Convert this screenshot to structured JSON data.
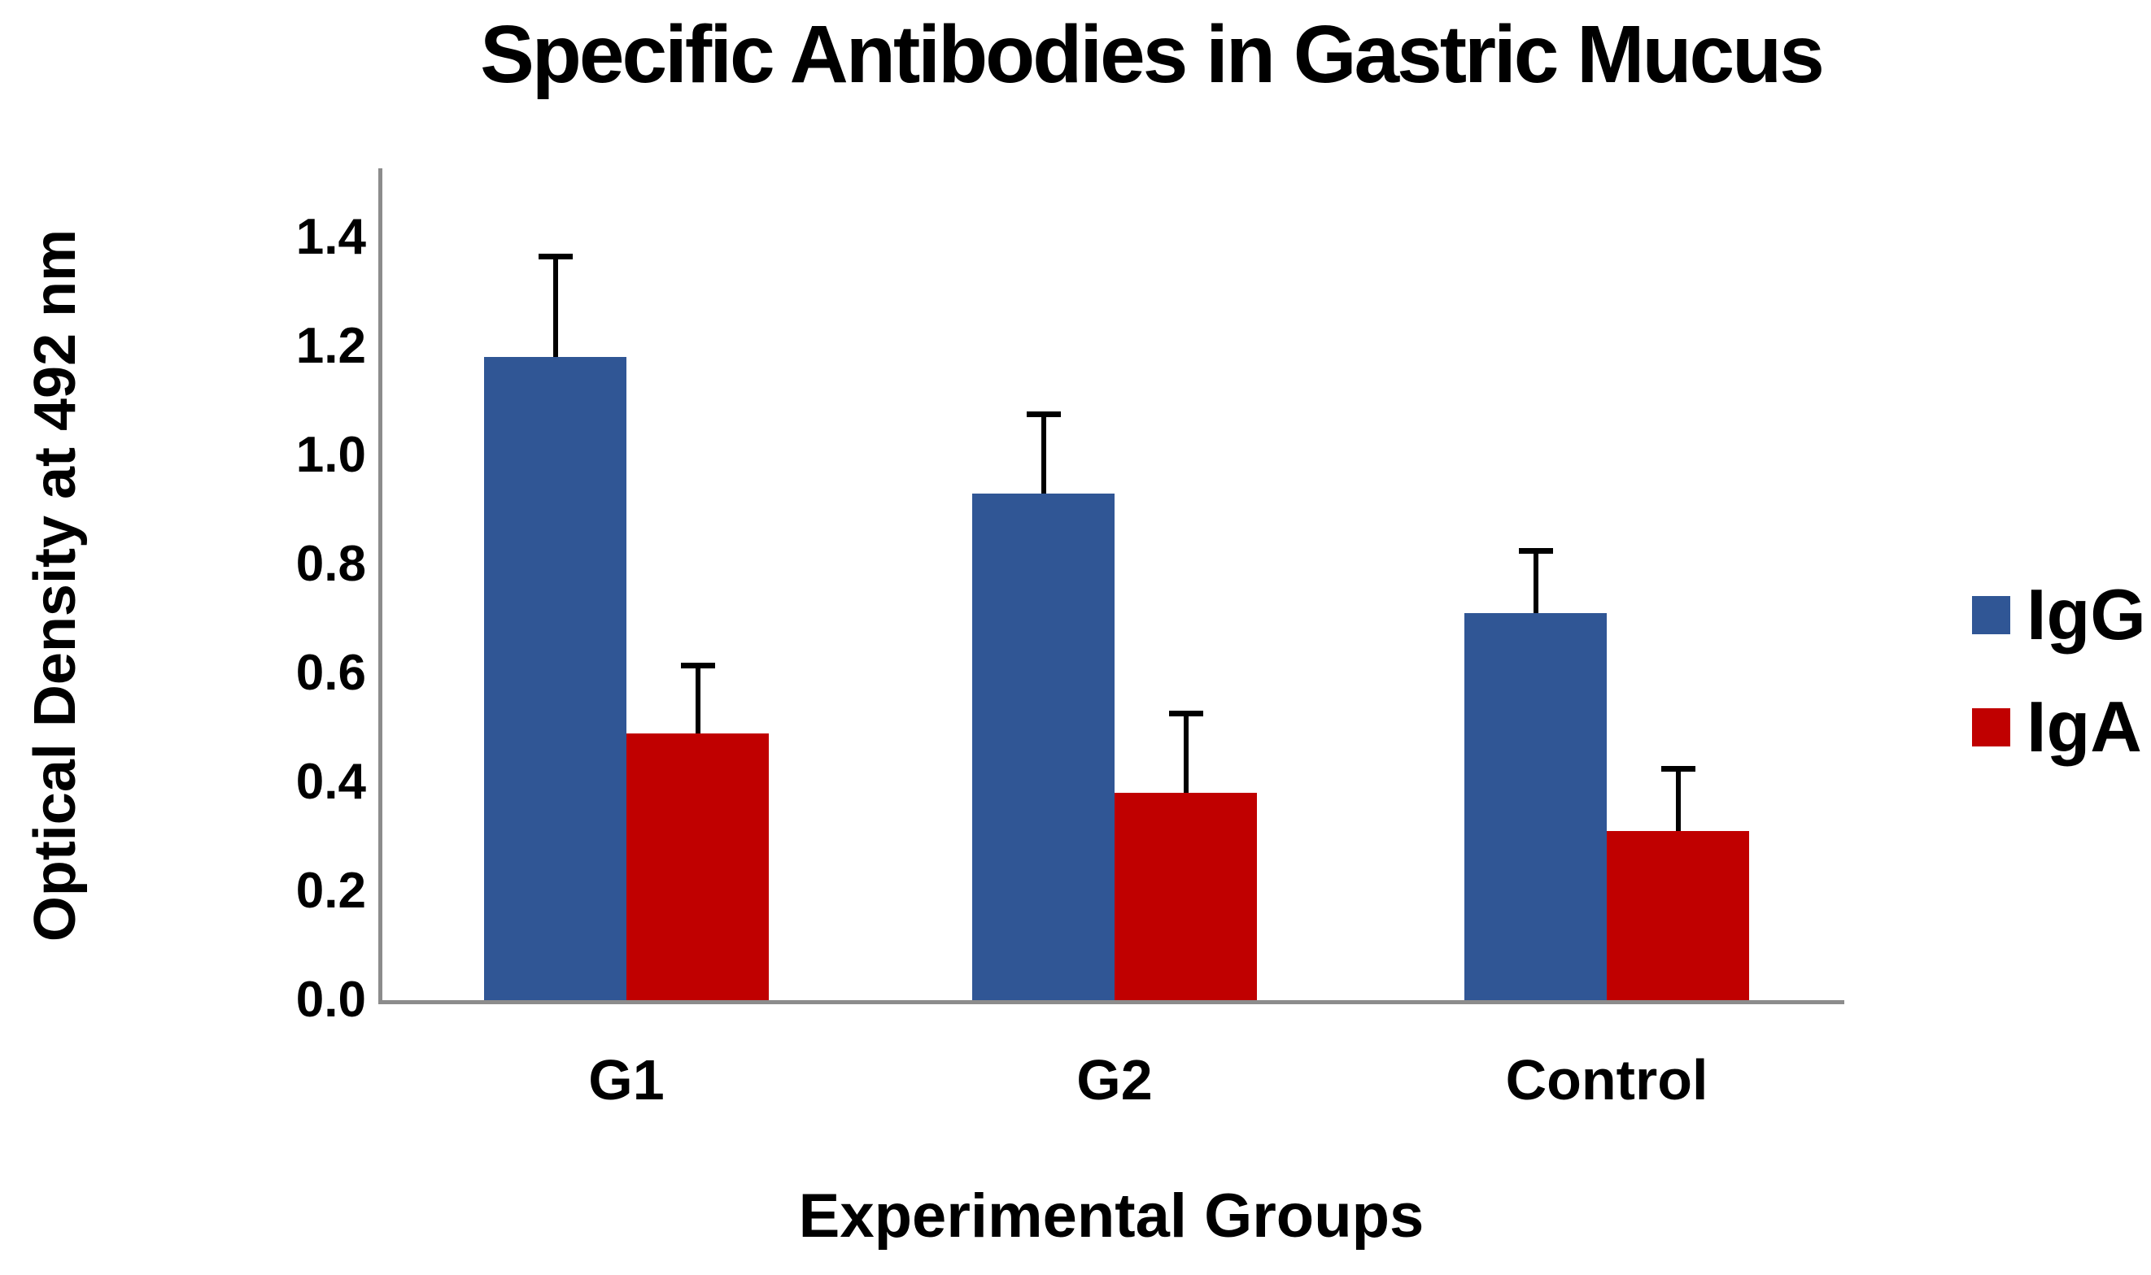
{
  "background": "#FFFFFF",
  "text_color": "#000000",
  "chart_data": {
    "type": "bar",
    "title": "Specific Antibodies in Gastric Mucus",
    "xlabel": "Experimental Groups",
    "ylabel": "Optical Density at 492 nm",
    "categories": [
      "G1",
      "G2",
      "Control"
    ],
    "series": [
      {
        "name": "IgG",
        "color": "#305695",
        "values": [
          1.18,
          0.93,
          0.71
        ],
        "errors_plus": [
          0.19,
          0.15,
          0.12
        ]
      },
      {
        "name": "IgA",
        "color": "#C00000",
        "values": [
          0.49,
          0.38,
          0.31
        ],
        "errors_plus": [
          0.13,
          0.15,
          0.12
        ]
      }
    ],
    "ylim": [
      0.0,
      1.4
    ],
    "ytick_step": 0.2,
    "ytick_labels": [
      "1.4",
      "1.2",
      "1.0",
      "0.8",
      "0.6",
      "0.4",
      "0.2",
      "0.0"
    ],
    "grid": false,
    "legend_position": "right",
    "error_bars": "upper-only-with-caps",
    "error_bar_color": "#000000",
    "axis_line_color": "#8C8C8C"
  }
}
